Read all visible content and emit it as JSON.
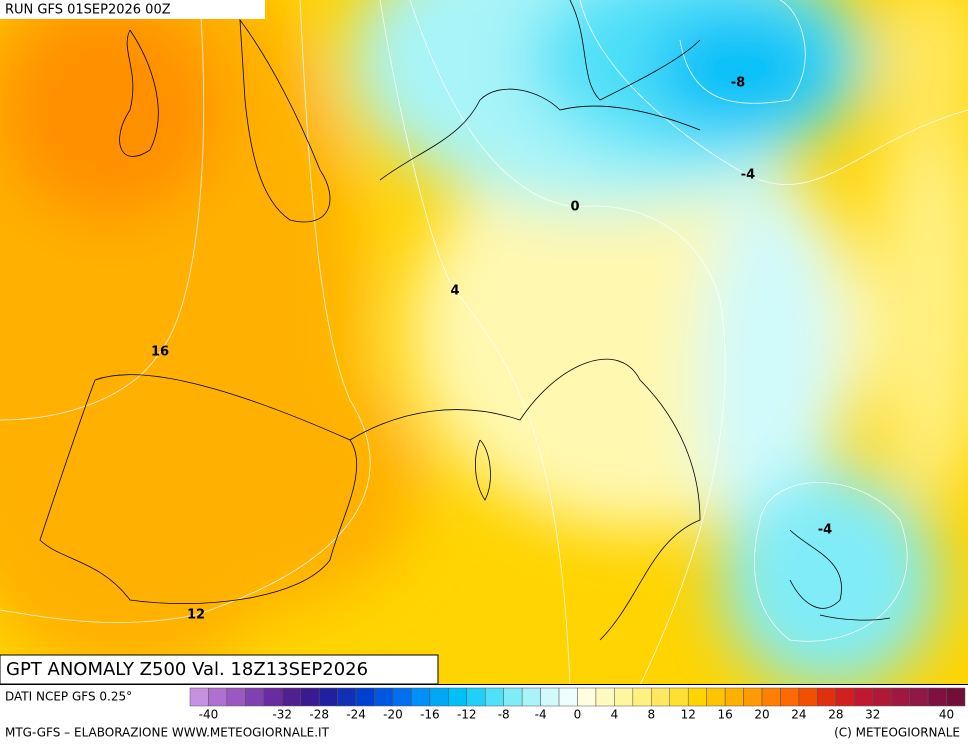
{
  "header": {
    "run": "RUN GFS 01SEP2026 00Z"
  },
  "map": {
    "contour_labels": [
      "-8",
      "-4",
      "0",
      "4",
      "16",
      "12",
      "-4"
    ]
  },
  "title": "GPT ANOMALY Z500 Val. 18Z13SEP2026",
  "legend": {
    "source": "DATI NCEP GFS 0.25°",
    "ticks": [
      "-40",
      "-32",
      "-28",
      "-24",
      "-20",
      "-16",
      "-12",
      "-8",
      "-4",
      "0",
      "4",
      "8",
      "12",
      "16",
      "20",
      "24",
      "28",
      "32",
      "40"
    ],
    "colors": [
      "#c890e0",
      "#b070d0",
      "#9a58c0",
      "#8040b0",
      "#6a2aa0",
      "#502090",
      "#3a1a90",
      "#2020a0",
      "#1030b8",
      "#0040d0",
      "#0058e0",
      "#0070f0",
      "#0090f8",
      "#00a8f8",
      "#00c0f8",
      "#20d0f8",
      "#50e0f8",
      "#80ecf8",
      "#a8f4f8",
      "#d0fafc",
      "#eefefe",
      "#ffffe0",
      "#fffac0",
      "#fff6a0",
      "#fff080",
      "#ffe860",
      "#ffe030",
      "#ffd400",
      "#ffc400",
      "#ffb000",
      "#ff9a00",
      "#ff8000",
      "#ff6a00",
      "#f05000",
      "#e03010",
      "#d02020",
      "#c01830",
      "#b01838",
      "#a01840",
      "#901848",
      "#801040",
      "#701038"
    ]
  },
  "footer": {
    "credit": "MTG-GFS – ELABORAZIONE WWW.METEOGIORNALE.IT",
    "copyright": "(C) METEOGIORNALE"
  }
}
